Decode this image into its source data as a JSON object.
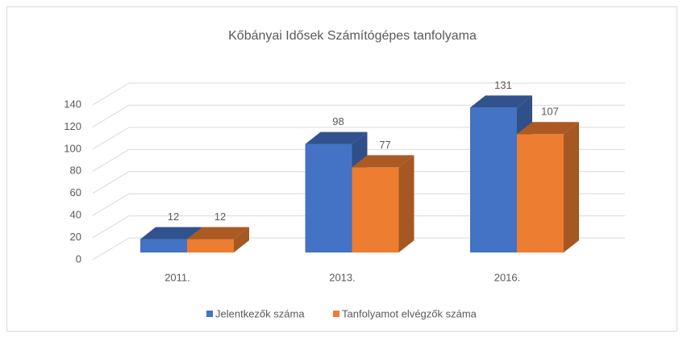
{
  "chart_data": {
    "type": "bar3d",
    "title": "Kőbányai Idősek Számítógépes tanfolyama",
    "categories": [
      "2011.",
      "2013.",
      "2016."
    ],
    "series": [
      {
        "name": "Jelentkezők száma",
        "color": "#4472c4",
        "values": [
          12,
          98,
          131
        ]
      },
      {
        "name": "Tanfolyamot elvégzők száma",
        "color": "#ed7d31",
        "values": [
          12,
          77,
          107
        ]
      }
    ],
    "ylim": [
      0,
      140
    ],
    "yticks": [
      0,
      20,
      40,
      60,
      80,
      100,
      120,
      140
    ],
    "grid": true,
    "legend": "bottom"
  }
}
